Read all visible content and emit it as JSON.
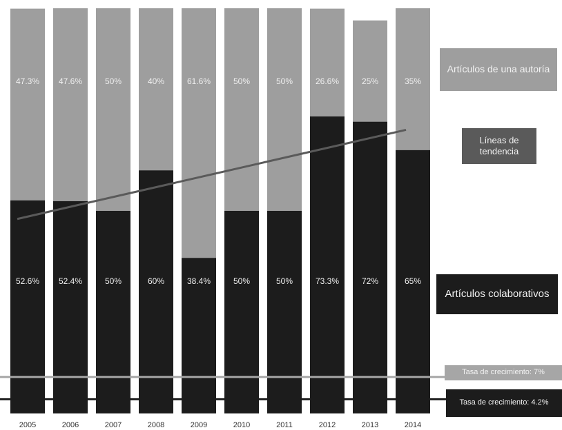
{
  "chart_data": {
    "type": "bar",
    "stacked": true,
    "categories": [
      "2005",
      "2006",
      "2007",
      "2008",
      "2009",
      "2010",
      "2011",
      "2012",
      "2013",
      "2014"
    ],
    "series": [
      {
        "name": "Artículos colaborativos",
        "values": [
          52.6,
          52.4,
          50,
          60,
          38.4,
          50,
          50,
          73.3,
          72,
          65
        ],
        "labels": [
          "52.6%",
          "52.4%",
          "50%",
          "60%",
          "38.4%",
          "50%",
          "50%",
          "73.3%",
          "72%",
          "65%"
        ],
        "color": "#1c1c1c"
      },
      {
        "name": "Artículos de una autoría",
        "values": [
          47.3,
          47.6,
          50,
          40,
          61.6,
          50,
          50,
          26.6,
          25,
          35
        ],
        "labels": [
          "47.3%",
          "47.6%",
          "50%",
          "40%",
          "61.6%",
          "50%",
          "50%",
          "26.6%",
          "25%",
          "35%"
        ],
        "color": "#9e9e9e"
      }
    ],
    "trend_line": {
      "name": "Líneas de tendencia",
      "start": 48,
      "end": 70,
      "color": "#5a5a5a"
    },
    "growth_rates": [
      {
        "name": "Tasa de crecimiento: 7%",
        "color": "#a6a6a6",
        "level": 0.09
      },
      {
        "name": "Tasa de crecimiento: 4.2%",
        "color": "#1c1c1c",
        "level": 0.035
      }
    ],
    "ylim": [
      0,
      100
    ],
    "grid": false,
    "legend_position": "right"
  }
}
